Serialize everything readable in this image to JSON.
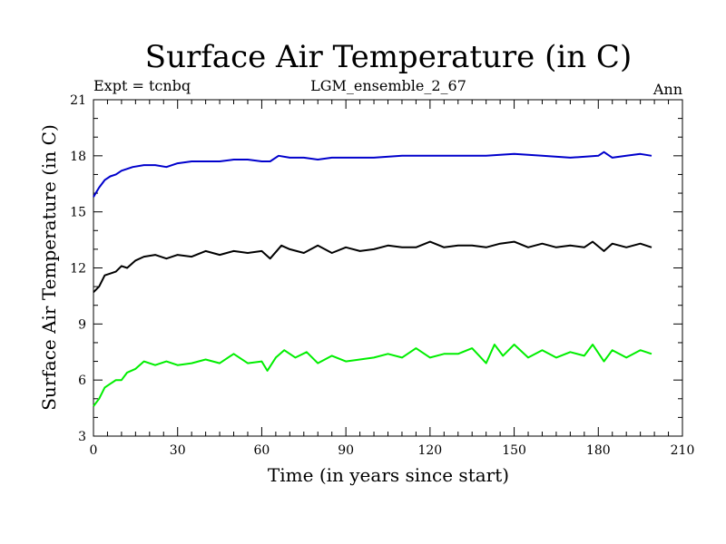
{
  "chart_data": {
    "type": "line",
    "title": "Surface Air Temperature (in C)",
    "subtitle_left": "Expt = tcnbq",
    "subtitle_center": "LGM_ensemble_2_67",
    "subtitle_right": "Ann",
    "xlabel": "Time (in years since start)",
    "ylabel": "Surface Air Temperature (in C)",
    "xlim": [
      0,
      210
    ],
    "ylim": [
      3,
      21
    ],
    "xticks": [
      0,
      30,
      60,
      90,
      120,
      150,
      180,
      210
    ],
    "xtick_labels": [
      "0",
      "30",
      "60",
      "90",
      "120",
      "150",
      "180",
      "210"
    ],
    "yticks": [
      3,
      6,
      9,
      12,
      15,
      18,
      21
    ],
    "ytick_labels": [
      "3",
      "6",
      "9",
      "12",
      "15",
      "18",
      "21"
    ],
    "x_minor_step": 5,
    "y_minor_step": 1,
    "grid": false,
    "series": [
      {
        "name": "blue",
        "color": "#0000cc",
        "x": [
          0,
          2,
          4,
          6,
          8,
          10,
          14,
          18,
          22,
          26,
          30,
          35,
          40,
          45,
          50,
          55,
          60,
          63,
          66,
          70,
          75,
          80,
          85,
          90,
          95,
          100,
          110,
          120,
          130,
          140,
          150,
          160,
          170,
          180,
          182,
          185,
          190,
          195,
          199
        ],
        "values": [
          15.8,
          16.3,
          16.7,
          16.9,
          17.0,
          17.2,
          17.4,
          17.5,
          17.5,
          17.4,
          17.6,
          17.7,
          17.7,
          17.7,
          17.8,
          17.8,
          17.7,
          17.7,
          18.0,
          17.9,
          17.9,
          17.8,
          17.9,
          17.9,
          17.9,
          17.9,
          18.0,
          18.0,
          18.0,
          18.0,
          18.1,
          18.0,
          17.9,
          18.0,
          18.2,
          17.9,
          18.0,
          18.1,
          18.0
        ]
      },
      {
        "name": "black",
        "color": "#000000",
        "x": [
          0,
          2,
          4,
          6,
          8,
          10,
          12,
          15,
          18,
          22,
          26,
          30,
          35,
          40,
          45,
          50,
          55,
          60,
          63,
          67,
          70,
          75,
          80,
          85,
          90,
          95,
          100,
          105,
          110,
          115,
          120,
          125,
          130,
          135,
          140,
          145,
          150,
          155,
          160,
          165,
          170,
          175,
          178,
          182,
          185,
          190,
          195,
          199
        ],
        "values": [
          10.7,
          11.0,
          11.6,
          11.7,
          11.8,
          12.1,
          12.0,
          12.4,
          12.6,
          12.7,
          12.5,
          12.7,
          12.6,
          12.9,
          12.7,
          12.9,
          12.8,
          12.9,
          12.5,
          13.2,
          13.0,
          12.8,
          13.2,
          12.8,
          13.1,
          12.9,
          13.0,
          13.2,
          13.1,
          13.1,
          13.4,
          13.1,
          13.2,
          13.2,
          13.1,
          13.3,
          13.4,
          13.1,
          13.3,
          13.1,
          13.2,
          13.1,
          13.4,
          12.9,
          13.3,
          13.1,
          13.3,
          13.1
        ]
      },
      {
        "name": "green",
        "color": "#00ee00",
        "x": [
          0,
          2,
          4,
          6,
          8,
          10,
          12,
          15,
          18,
          22,
          26,
          30,
          35,
          40,
          45,
          50,
          55,
          60,
          62,
          65,
          68,
          72,
          76,
          80,
          85,
          90,
          95,
          100,
          105,
          110,
          115,
          120,
          125,
          130,
          135,
          140,
          143,
          146,
          150,
          155,
          160,
          165,
          170,
          175,
          178,
          182,
          185,
          190,
          195,
          199
        ],
        "values": [
          4.6,
          5.0,
          5.6,
          5.8,
          6.0,
          6.0,
          6.4,
          6.6,
          7.0,
          6.8,
          7.0,
          6.8,
          6.9,
          7.1,
          6.9,
          7.4,
          6.9,
          7.0,
          6.5,
          7.2,
          7.6,
          7.2,
          7.5,
          6.9,
          7.3,
          7.0,
          7.1,
          7.2,
          7.4,
          7.2,
          7.7,
          7.2,
          7.4,
          7.4,
          7.7,
          6.9,
          7.9,
          7.3,
          7.9,
          7.2,
          7.6,
          7.2,
          7.5,
          7.3,
          7.9,
          7.0,
          7.6,
          7.2,
          7.6,
          7.4
        ]
      }
    ]
  }
}
